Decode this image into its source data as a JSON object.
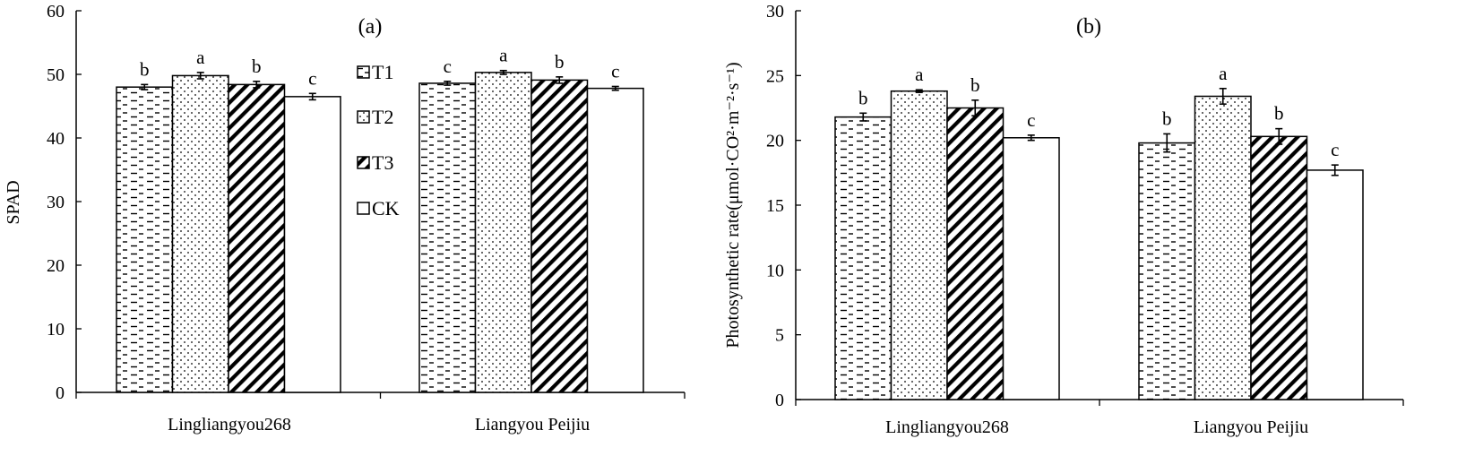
{
  "chart_data": [
    {
      "type": "bar",
      "panel_label": "(a)",
      "ylabel": "SPAD",
      "ylim": [
        0,
        60
      ],
      "yticks": [
        0,
        10,
        20,
        30,
        40,
        50,
        60
      ],
      "categories": [
        "Lingliangyou268",
        "Liangyou Peijiu"
      ],
      "series": [
        {
          "name": "T1",
          "values": [
            48.0,
            48.6
          ],
          "errors": [
            0.4,
            0.3
          ],
          "letters": [
            "b",
            "c"
          ]
        },
        {
          "name": "T2",
          "values": [
            49.8,
            50.3
          ],
          "errors": [
            0.5,
            0.3
          ],
          "letters": [
            "a",
            "a"
          ]
        },
        {
          "name": "T3",
          "values": [
            48.4,
            49.1
          ],
          "errors": [
            0.5,
            0.5
          ],
          "letters": [
            "b",
            "b"
          ]
        },
        {
          "name": "CK",
          "values": [
            46.5,
            47.8
          ],
          "errors": [
            0.5,
            0.3
          ],
          "letters": [
            "c",
            "c"
          ]
        }
      ],
      "legend": {
        "position": "center",
        "entries": [
          "T1",
          "T2",
          "T3",
          "CK"
        ]
      },
      "grid": false
    },
    {
      "type": "bar",
      "panel_label": "(b)",
      "ylabel": "Photosynthetic rate(μmol·CO²·m⁻²·s⁻¹)",
      "ylim": [
        0,
        30
      ],
      "yticks": [
        0,
        5,
        10,
        15,
        20,
        25,
        30
      ],
      "categories": [
        "Lingliangyou268",
        "Liangyou Peijiu"
      ],
      "series": [
        {
          "name": "T1",
          "values": [
            21.8,
            19.8
          ],
          "errors": [
            0.3,
            0.7
          ],
          "letters": [
            "b",
            "b"
          ]
        },
        {
          "name": "T2",
          "values": [
            23.8,
            23.4
          ],
          "errors": [
            0.1,
            0.6
          ],
          "letters": [
            "a",
            "a"
          ]
        },
        {
          "name": "T3",
          "values": [
            22.5,
            20.3
          ],
          "errors": [
            0.6,
            0.6
          ],
          "letters": [
            "b",
            "b"
          ]
        },
        {
          "name": "CK",
          "values": [
            20.2,
            17.7
          ],
          "errors": [
            0.2,
            0.4
          ],
          "letters": [
            "c",
            "c"
          ]
        }
      ],
      "grid": false
    }
  ]
}
